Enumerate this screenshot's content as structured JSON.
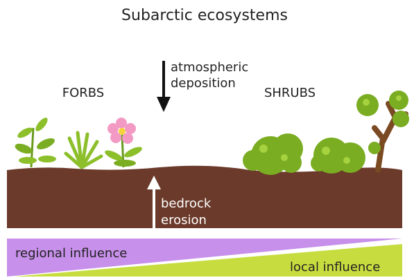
{
  "title": "Subarctic ecosystems",
  "labels": {
    "deposition": [
      "atmospheric",
      "deposition"
    ],
    "forbs": "FORBS",
    "shrubs": "SHRUBS",
    "erosion": [
      "bedrock",
      "erosion"
    ],
    "regional": "regional influence",
    "local": "local influence"
  }
}
